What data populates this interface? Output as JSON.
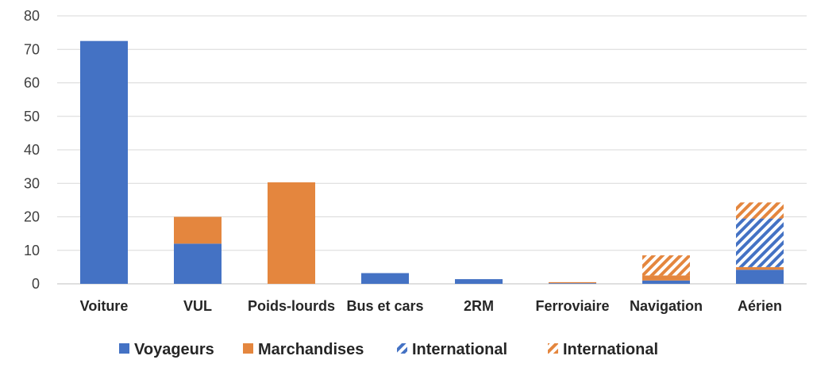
{
  "chart_data": {
    "type": "bar",
    "stacked": true,
    "title": "",
    "xlabel": "",
    "ylabel": "",
    "ylim": [
      0,
      80
    ],
    "yticks": [
      0,
      10,
      20,
      30,
      40,
      50,
      60,
      70,
      80
    ],
    "grid": true,
    "legend_position": "bottom",
    "categories": [
      "Voiture",
      "VUL",
      "Poids-lourds",
      "Bus et cars",
      "2RM",
      "Ferroviaire",
      "Navigation",
      "Aérien"
    ],
    "series": [
      {
        "name": "Voyageurs",
        "color": "#4472C4",
        "pattern": "solid",
        "values": [
          72.5,
          12,
          0,
          3.2,
          1.4,
          0.2,
          1.0,
          4.2
        ]
      },
      {
        "name": "Marchandises",
        "color": "#E4863E",
        "pattern": "solid",
        "values": [
          0,
          8,
          30.3,
          0,
          0,
          0.3,
          1.5,
          0.8
        ]
      },
      {
        "name": "International",
        "color": "#4472C4",
        "pattern": "hatched",
        "values": [
          0,
          0,
          0,
          0,
          0,
          0,
          0,
          14.5
        ]
      },
      {
        "name": "International",
        "color": "#E4863E",
        "pattern": "hatched",
        "values": [
          0,
          0,
          0,
          0,
          0,
          0,
          6.0,
          4.8
        ]
      }
    ]
  }
}
